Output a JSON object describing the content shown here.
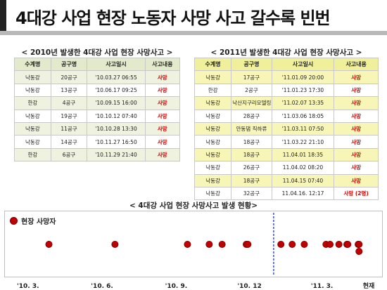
{
  "page_title": "4대강 사업 현장 노동자 사망 사고 갈수록 빈번",
  "chart_data": [
    {
      "type": "table",
      "title": "< 2010년 발생한 4대강 사업 현장 사망사고 >",
      "columns": [
        "수계명",
        "공구명",
        "사고일시",
        "사고내용"
      ],
      "rows": [
        [
          "낙동강",
          "20공구",
          "'10.03.27 06:55",
          "사망"
        ],
        [
          "낙동강",
          "13공구",
          "'10.06.17 09:25",
          "사망"
        ],
        [
          "한강",
          "4공구",
          "'10.09.15 16:00",
          "사망"
        ],
        [
          "낙동강",
          "19공구",
          "'10.10.12 07:40",
          "사망"
        ],
        [
          "낙동강",
          "11공구",
          "'10.10.28 13:30",
          "사망"
        ],
        [
          "낙동강",
          "14공구",
          "'10.11.27 16:50",
          "사망"
        ],
        [
          "한강",
          "6공구",
          "'10.11.29 21:40",
          "사망"
        ]
      ]
    },
    {
      "type": "table",
      "title": "< 2011년 발생한 4대강 사업 현장 사망사고 >",
      "columns": [
        "수계명",
        "공구명",
        "사고일시",
        "사고내용"
      ],
      "rows": [
        [
          "낙동강",
          "17공구",
          "'11.01.09 20:00",
          "사망"
        ],
        [
          "한강",
          "2공구",
          "'11.01.23 17:30",
          "사망"
        ],
        [
          "낙동강",
          "낙산지구리모델링",
          "'11.02.07 13:35",
          "사망"
        ],
        [
          "낙동강",
          "28공구",
          "'11.03.06 18:05",
          "사망"
        ],
        [
          "낙동강",
          "안동댐 직하류",
          "'11.03.11 07:50",
          "사망"
        ],
        [
          "낙동강",
          "18공구",
          "'11.03.22 21:10",
          "사망"
        ],
        [
          "낙동강",
          "18공구",
          "11.04.01 18:35",
          "사망"
        ],
        [
          "낙동강",
          "26공구",
          "11.04.02 08:20",
          "사망"
        ],
        [
          "낙동강",
          "18공구",
          "11.04.15 07:40",
          "사망"
        ],
        [
          "낙동강",
          "32공구",
          "11.04.16. 12:17",
          "사망 (2명)"
        ]
      ]
    },
    {
      "type": "scatter",
      "title": "< 4대강 사업 현장 사망사고 발생 현황>",
      "legend": [
        "현장 사망자"
      ],
      "legend_position": "top-left",
      "marker_color": "#c00000",
      "x_axis_type": "date",
      "x_range": [
        "2010-02-10",
        "2011-05-05"
      ],
      "x_tick_labels": [
        {
          "date": "2010-03-01",
          "label": "'10. 3."
        },
        {
          "date": "2010-06-01",
          "label": "'10. 6."
        },
        {
          "date": "2010-09-01",
          "label": "'10. 9."
        },
        {
          "date": "2010-12-01",
          "label": "'10. 12"
        },
        {
          "date": "2011-03-01",
          "label": "'11. 3."
        },
        {
          "date": "2011-04-28",
          "label": "현재"
        }
      ],
      "divider_date": "2010-12-31",
      "series": [
        {
          "name": "현장 사망자",
          "points": [
            {
              "x": "2010-03-27",
              "y": 1
            },
            {
              "x": "2010-06-17",
              "y": 1
            },
            {
              "x": "2010-09-15",
              "y": 1
            },
            {
              "x": "2010-10-12",
              "y": 1
            },
            {
              "x": "2010-10-28",
              "y": 1
            },
            {
              "x": "2010-11-27",
              "y": 1
            },
            {
              "x": "2010-11-29",
              "y": 1
            },
            {
              "x": "2011-01-09",
              "y": 1
            },
            {
              "x": "2011-01-23",
              "y": 1
            },
            {
              "x": "2011-02-07",
              "y": 1
            },
            {
              "x": "2011-03-06",
              "y": 1
            },
            {
              "x": "2011-03-11",
              "y": 1
            },
            {
              "x": "2011-03-22",
              "y": 1
            },
            {
              "x": "2011-04-01",
              "y": 1
            },
            {
              "x": "2011-04-02",
              "y": 1
            },
            {
              "x": "2011-04-15",
              "y": 1
            },
            {
              "x": "2011-04-16",
              "y": 1
            },
            {
              "x": "2011-04-16",
              "y": 2
            }
          ]
        }
      ]
    }
  ]
}
